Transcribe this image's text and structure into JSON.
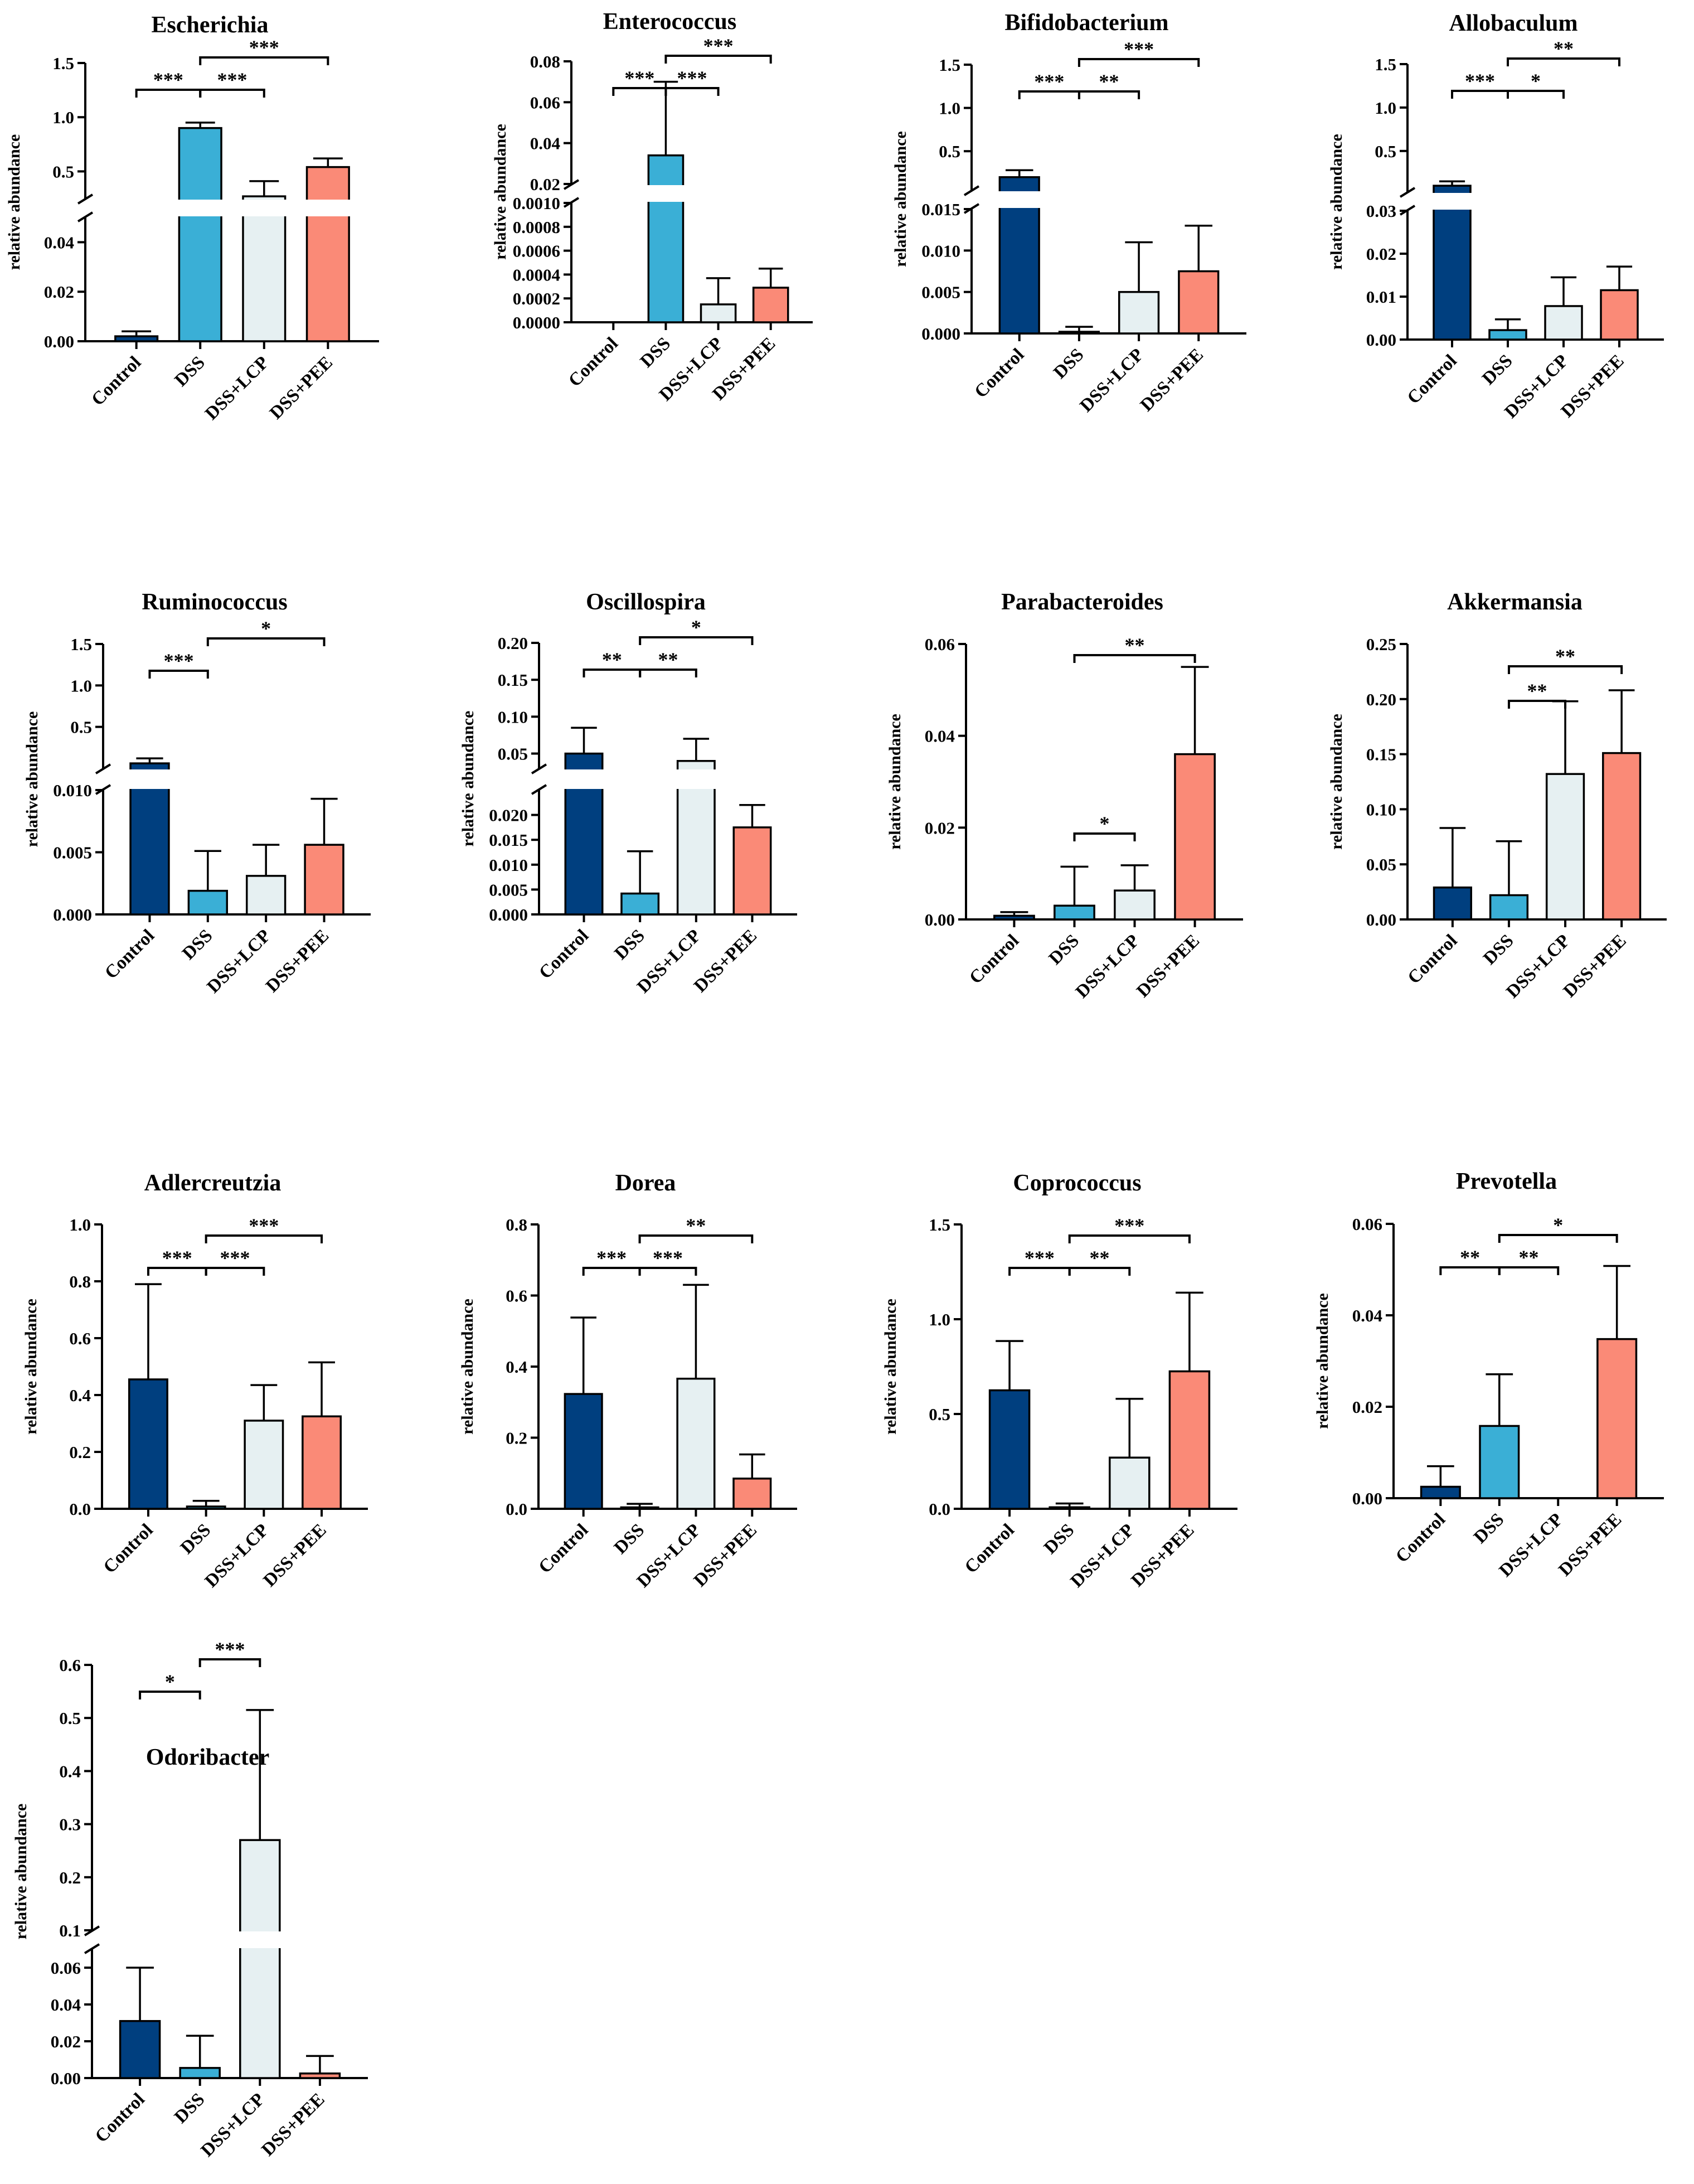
{
  "figure": {
    "ylabel": "relative abundance",
    "groups": [
      "Control",
      "DSS",
      "DSS+LCP",
      "DSS+PEE"
    ]
  },
  "colors": {
    "Control": "#003f7f",
    "DSS": "#3aafd6",
    "DSS+LCP": "#e6f0f2",
    "DSS+PEE": "#fa8a77",
    "stroke": "#000000"
  },
  "chart_data": [
    {
      "type": "bar",
      "title": "Escherichia",
      "ylabel": "relative abundance",
      "categories": [
        "Control",
        "DSS",
        "DSS+LCP",
        "DSS+PEE"
      ],
      "values": [
        0.002,
        0.9,
        0.27,
        0.54
      ],
      "errors": [
        0.002,
        0.05,
        0.14,
        0.08
      ],
      "axis": {
        "broken": true,
        "lower": {
          "min": 0,
          "max": 0.05,
          "ticks": [
            0.0,
            0.02,
            0.04
          ],
          "labels": [
            "0.00",
            "0.02",
            "0.04"
          ]
        },
        "upper": {
          "min": 0.25,
          "max": 1.5,
          "ticks": [
            0.5,
            1.0,
            1.5
          ],
          "labels": [
            "0.5",
            "1.0",
            "1.5"
          ]
        }
      },
      "significance": [
        {
          "from": 0,
          "to": 1,
          "label": "***"
        },
        {
          "from": 1,
          "to": 2,
          "label": "***"
        },
        {
          "from": 1,
          "to": 3,
          "label": "***"
        }
      ]
    },
    {
      "type": "bar",
      "title": "Enterococcus",
      "ylabel": "relative abundance",
      "categories": [
        "Control",
        "DSS",
        "DSS+LCP",
        "DSS+PEE"
      ],
      "values": [
        0.0,
        0.034,
        0.00015,
        0.00029
      ],
      "errors": [
        0.0,
        0.036,
        0.00022,
        0.00016
      ],
      "axis": {
        "broken": true,
        "lower": {
          "min": 0,
          "max": 0.001,
          "ticks": [
            0,
            0.0002,
            0.0004,
            0.0006,
            0.0008,
            0.001
          ],
          "labels": [
            "0.0000",
            "0.0002",
            "0.0004",
            "0.0006",
            "0.0008",
            "0.0010"
          ]
        },
        "upper": {
          "min": 0.02,
          "max": 0.08,
          "ticks": [
            0.02,
            0.04,
            0.06,
            0.08
          ],
          "labels": [
            "0.02",
            "0.04",
            "0.06",
            "0.08"
          ]
        }
      },
      "significance": [
        {
          "from": 0,
          "to": 1,
          "label": "***"
        },
        {
          "from": 1,
          "to": 2,
          "label": "***"
        },
        {
          "from": 1,
          "to": 3,
          "label": "***"
        }
      ]
    },
    {
      "type": "bar",
      "title": "Bifidobacterium",
      "ylabel": "relative abundance",
      "categories": [
        "Control",
        "DSS",
        "DSS+LCP",
        "DSS+PEE"
      ],
      "values": [
        0.2,
        0.0002,
        0.005,
        0.0075
      ],
      "errors": [
        0.08,
        0.0006,
        0.006,
        0.0055
      ],
      "axis": {
        "broken": true,
        "lower": {
          "min": 0,
          "max": 0.015,
          "ticks": [
            0,
            0.005,
            0.01,
            0.015
          ],
          "labels": [
            "0.000",
            "0.005",
            "0.010",
            "0.015"
          ]
        },
        "upper": {
          "min": 0.05,
          "max": 1.5,
          "ticks": [
            0.5,
            1.0,
            1.5
          ],
          "labels": [
            "0.5",
            "1.0",
            "1.5"
          ]
        }
      },
      "significance": [
        {
          "from": 0,
          "to": 1,
          "label": "***"
        },
        {
          "from": 1,
          "to": 2,
          "label": "**"
        },
        {
          "from": 1,
          "to": 3,
          "label": "***"
        }
      ]
    },
    {
      "type": "bar",
      "title": "Allobaculum",
      "ylabel": "relative abundance",
      "categories": [
        "Control",
        "DSS",
        "DSS+LCP",
        "DSS+PEE"
      ],
      "values": [
        0.1,
        0.0022,
        0.0078,
        0.0115
      ],
      "errors": [
        0.05,
        0.0025,
        0.0067,
        0.0055
      ],
      "axis": {
        "broken": true,
        "lower": {
          "min": 0,
          "max": 0.03,
          "ticks": [
            0,
            0.01,
            0.02,
            0.03
          ],
          "labels": [
            "0.00",
            "0.01",
            "0.02",
            "0.03"
          ]
        },
        "upper": {
          "min": 0.03,
          "max": 1.5,
          "ticks": [
            0.5,
            1.0,
            1.5
          ],
          "labels": [
            "0.5",
            "1.0",
            "1.5"
          ]
        }
      },
      "significance": [
        {
          "from": 0,
          "to": 1,
          "label": "***"
        },
        {
          "from": 1,
          "to": 2,
          "label": "*"
        },
        {
          "from": 1,
          "to": 3,
          "label": "**"
        }
      ]
    },
    {
      "type": "bar",
      "title": "Ruminococcus",
      "ylabel": "relative abundance",
      "categories": [
        "Control",
        "DSS",
        "DSS+LCP",
        "DSS+PEE"
      ],
      "values": [
        0.06,
        0.0019,
        0.0031,
        0.0056
      ],
      "errors": [
        0.06,
        0.0032,
        0.0025,
        0.0037
      ],
      "axis": {
        "broken": true,
        "lower": {
          "min": 0,
          "max": 0.01,
          "ticks": [
            0,
            0.005,
            0.01
          ],
          "labels": [
            "0.000",
            "0.005",
            "0.010"
          ]
        },
        "upper": {
          "min": 0.0,
          "max": 1.5,
          "ticks": [
            0.5,
            1.0,
            1.5
          ],
          "labels": [
            "0.5",
            "1.0",
            "1.5"
          ]
        }
      },
      "significance": [
        {
          "from": 0,
          "to": 1,
          "label": "***"
        },
        {
          "from": 1,
          "to": 3,
          "label": "*"
        }
      ]
    },
    {
      "type": "bar",
      "title": "Oscillospira",
      "ylabel": "relative abundance",
      "categories": [
        "Control",
        "DSS",
        "DSS+LCP",
        "DSS+PEE"
      ],
      "values": [
        0.05,
        0.0042,
        0.04,
        0.0175
      ],
      "errors": [
        0.035,
        0.0085,
        0.03,
        0.0045
      ],
      "axis": {
        "broken": true,
        "lower": {
          "min": 0,
          "max": 0.025,
          "ticks": [
            0,
            0.005,
            0.01,
            0.015,
            0.02
          ],
          "labels": [
            "0.000",
            "0.005",
            "0.010",
            "0.015",
            "0.020"
          ]
        },
        "upper": {
          "min": 0.03,
          "max": 0.2,
          "ticks": [
            0.05,
            0.1,
            0.15,
            0.2
          ],
          "labels": [
            "0.05",
            "0.10",
            "0.15",
            "0.20"
          ]
        }
      },
      "significance": [
        {
          "from": 0,
          "to": 1,
          "label": "**"
        },
        {
          "from": 1,
          "to": 2,
          "label": "**"
        },
        {
          "from": 1,
          "to": 3,
          "label": "*"
        }
      ]
    },
    {
      "type": "bar",
      "title": "Parabacteroides",
      "ylabel": "relative abundance",
      "categories": [
        "Control",
        "DSS",
        "DSS+LCP",
        "DSS+PEE"
      ],
      "values": [
        0.0008,
        0.003,
        0.0063,
        0.036
      ],
      "errors": [
        0.0008,
        0.0085,
        0.0055,
        0.019
      ],
      "axis": {
        "broken": false,
        "main": {
          "min": 0,
          "max": 0.06,
          "ticks": [
            0,
            0.02,
            0.04,
            0.06
          ],
          "labels": [
            "0.00",
            "0.02",
            "0.04",
            "0.06"
          ]
        }
      },
      "significance": [
        {
          "from": 1,
          "to": 2,
          "label": "*"
        },
        {
          "from": 1,
          "to": 3,
          "label": "**"
        }
      ]
    },
    {
      "type": "bar",
      "title": "Akkermansia",
      "ylabel": "relative abundance",
      "categories": [
        "Control",
        "DSS",
        "DSS+LCP",
        "DSS+PEE"
      ],
      "values": [
        0.029,
        0.022,
        0.132,
        0.151
      ],
      "errors": [
        0.054,
        0.049,
        0.066,
        0.057
      ],
      "axis": {
        "broken": false,
        "main": {
          "min": 0,
          "max": 0.25,
          "ticks": [
            0,
            0.05,
            0.1,
            0.15,
            0.2,
            0.25
          ],
          "labels": [
            "0.00",
            "0.05",
            "0.10",
            "0.15",
            "0.20",
            "0.25"
          ]
        }
      },
      "significance": [
        {
          "from": 1,
          "to": 2,
          "label": "**"
        },
        {
          "from": 1,
          "to": 3,
          "label": "**"
        }
      ]
    },
    {
      "type": "bar",
      "title": "Adlercreutzia",
      "ylabel": "relative abundance",
      "categories": [
        "Control",
        "DSS",
        "DSS+LCP",
        "DSS+PEE"
      ],
      "values": [
        0.455,
        0.008,
        0.31,
        0.325
      ],
      "errors": [
        0.335,
        0.02,
        0.125,
        0.19
      ],
      "axis": {
        "broken": false,
        "main": {
          "min": 0,
          "max": 1.0,
          "ticks": [
            0,
            0.2,
            0.4,
            0.6,
            0.8,
            1.0
          ],
          "labels": [
            "0.0",
            "0.2",
            "0.4",
            "0.6",
            "0.8",
            "1.0"
          ]
        }
      },
      "significance": [
        {
          "from": 0,
          "to": 1,
          "label": "***"
        },
        {
          "from": 1,
          "to": 2,
          "label": "***"
        },
        {
          "from": 1,
          "to": 3,
          "label": "***"
        }
      ]
    },
    {
      "type": "bar",
      "title": "Dorea",
      "ylabel": "relative abundance",
      "categories": [
        "Control",
        "DSS",
        "DSS+LCP",
        "DSS+PEE"
      ],
      "values": [
        0.323,
        0.004,
        0.366,
        0.085
      ],
      "errors": [
        0.215,
        0.01,
        0.264,
        0.068
      ],
      "axis": {
        "broken": false,
        "main": {
          "min": 0,
          "max": 0.8,
          "ticks": [
            0,
            0.2,
            0.4,
            0.6,
            0.8
          ],
          "labels": [
            "0.0",
            "0.2",
            "0.4",
            "0.6",
            "0.8"
          ]
        }
      },
      "significance": [
        {
          "from": 0,
          "to": 1,
          "label": "***"
        },
        {
          "from": 1,
          "to": 2,
          "label": "***"
        },
        {
          "from": 1,
          "to": 3,
          "label": "**"
        }
      ]
    },
    {
      "type": "bar",
      "title": "Coprococcus",
      "ylabel": "relative abundance",
      "categories": [
        "Control",
        "DSS",
        "DSS+LCP",
        "DSS+PEE"
      ],
      "values": [
        0.625,
        0.008,
        0.27,
        0.725
      ],
      "errors": [
        0.26,
        0.02,
        0.31,
        0.415
      ],
      "axis": {
        "broken": false,
        "main": {
          "min": 0,
          "max": 1.5,
          "ticks": [
            0,
            0.5,
            1.0,
            1.5
          ],
          "labels": [
            "0.0",
            "0.5",
            "1.0",
            "1.5"
          ]
        }
      },
      "significance": [
        {
          "from": 0,
          "to": 1,
          "label": "***"
        },
        {
          "from": 1,
          "to": 2,
          "label": "**"
        },
        {
          "from": 1,
          "to": 3,
          "label": "***"
        }
      ]
    },
    {
      "type": "bar",
      "title": "Prevotella",
      "ylabel": "relative abundance",
      "categories": [
        "Control",
        "DSS",
        "DSS+LCP",
        "DSS+PEE"
      ],
      "values": [
        0.0025,
        0.0158,
        0.0,
        0.0348
      ],
      "errors": [
        0.0045,
        0.0113,
        0.0,
        0.016
      ],
      "axis": {
        "broken": false,
        "main": {
          "min": 0,
          "max": 0.06,
          "ticks": [
            0,
            0.02,
            0.04,
            0.06
          ],
          "labels": [
            "0.00",
            "0.02",
            "0.04",
            "0.06"
          ]
        }
      },
      "significance": [
        {
          "from": 0,
          "to": 1,
          "label": "**"
        },
        {
          "from": 1,
          "to": 2,
          "label": "**"
        },
        {
          "from": 1,
          "to": 3,
          "label": "*"
        }
      ]
    },
    {
      "type": "bar",
      "title": "Odoribacter",
      "ylabel": "relative abundance",
      "categories": [
        "Control",
        "DSS",
        "DSS+LCP",
        "DSS+PEE"
      ],
      "values": [
        0.031,
        0.0055,
        0.27,
        0.0025
      ],
      "errors": [
        0.029,
        0.0175,
        0.245,
        0.0095
      ],
      "axis": {
        "broken": true,
        "lower": {
          "min": 0,
          "max": 0.07,
          "ticks": [
            0,
            0.02,
            0.04,
            0.06
          ],
          "labels": [
            "0.00",
            "0.02",
            "0.04",
            "0.06"
          ]
        },
        "upper": {
          "min": 0.1,
          "max": 0.6,
          "ticks": [
            0.1,
            0.2,
            0.3,
            0.4,
            0.5,
            0.6
          ],
          "labels": [
            "0.1",
            "0.2",
            "0.3",
            "0.4",
            "0.5",
            "0.6"
          ]
        }
      },
      "significance": [
        {
          "from": 0,
          "to": 1,
          "label": "*"
        },
        {
          "from": 1,
          "to": 2,
          "label": "***"
        }
      ]
    }
  ]
}
